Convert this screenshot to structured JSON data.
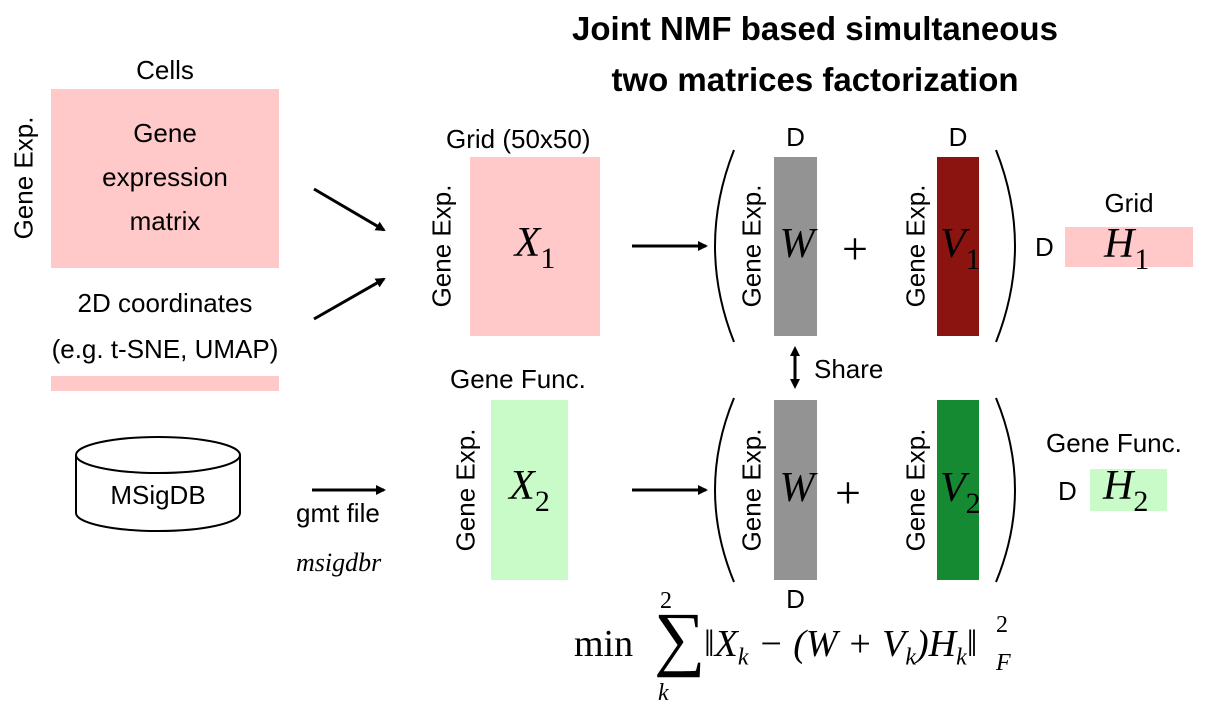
{
  "title": {
    "line1": "Joint NMF based simultaneous",
    "line2": "two matrices factorization"
  },
  "left": {
    "cells_label": "Cells",
    "gene_exp_label": "Gene Exp.",
    "expr_line1": "Gene",
    "expr_line2": "expression",
    "expr_line3": "matrix",
    "coords_line1": "2D coordinates",
    "coords_line2": "(e.g. t-SNE, UMAP)",
    "db_label": "MSigDB",
    "gmt_label": "gmt file",
    "pkg_label": "msigdbr"
  },
  "x1": {
    "top_label": "Grid (50x50)",
    "side_label": "Gene Exp.",
    "symbol": "X",
    "sub": "1"
  },
  "x2": {
    "top_label": "Gene Func.",
    "side_label": "Gene Exp.",
    "symbol": "X",
    "sub": "2"
  },
  "row1": {
    "w_top": "D",
    "w_side": "Gene Exp.",
    "w_symbol": "W",
    "plus": "+",
    "v_top": "D",
    "v_side": "Gene Exp.",
    "v_symbol": "V",
    "v_sub": "1",
    "h_top": "Grid",
    "h_side": "D",
    "h_symbol": "H",
    "h_sub": "1"
  },
  "row2": {
    "w_bottom": "D",
    "w_side": "Gene Exp.",
    "w_symbol": "W",
    "plus": "+",
    "v_side": "Gene Exp.",
    "v_symbol": "V",
    "v_sub": "2",
    "h_top": "Gene Func.",
    "h_side": "D",
    "h_symbol": "H",
    "h_sub": "2"
  },
  "share_label": "Share",
  "formula": {
    "min": "min",
    "sum": "∑",
    "upper": "2",
    "lower": "k",
    "body": "‖X",
    "k1": "k",
    "mid": " − (W + V",
    "k2": "k",
    "close": ")H",
    "k3": "k",
    "norm": "‖",
    "sup": "2",
    "subF": "F"
  },
  "colors": {
    "pink": "#ffc9c9",
    "light_green": "#c9fbc9",
    "gray": "#939393",
    "dark_red": "#8b1410",
    "dark_green": "#168a33"
  }
}
